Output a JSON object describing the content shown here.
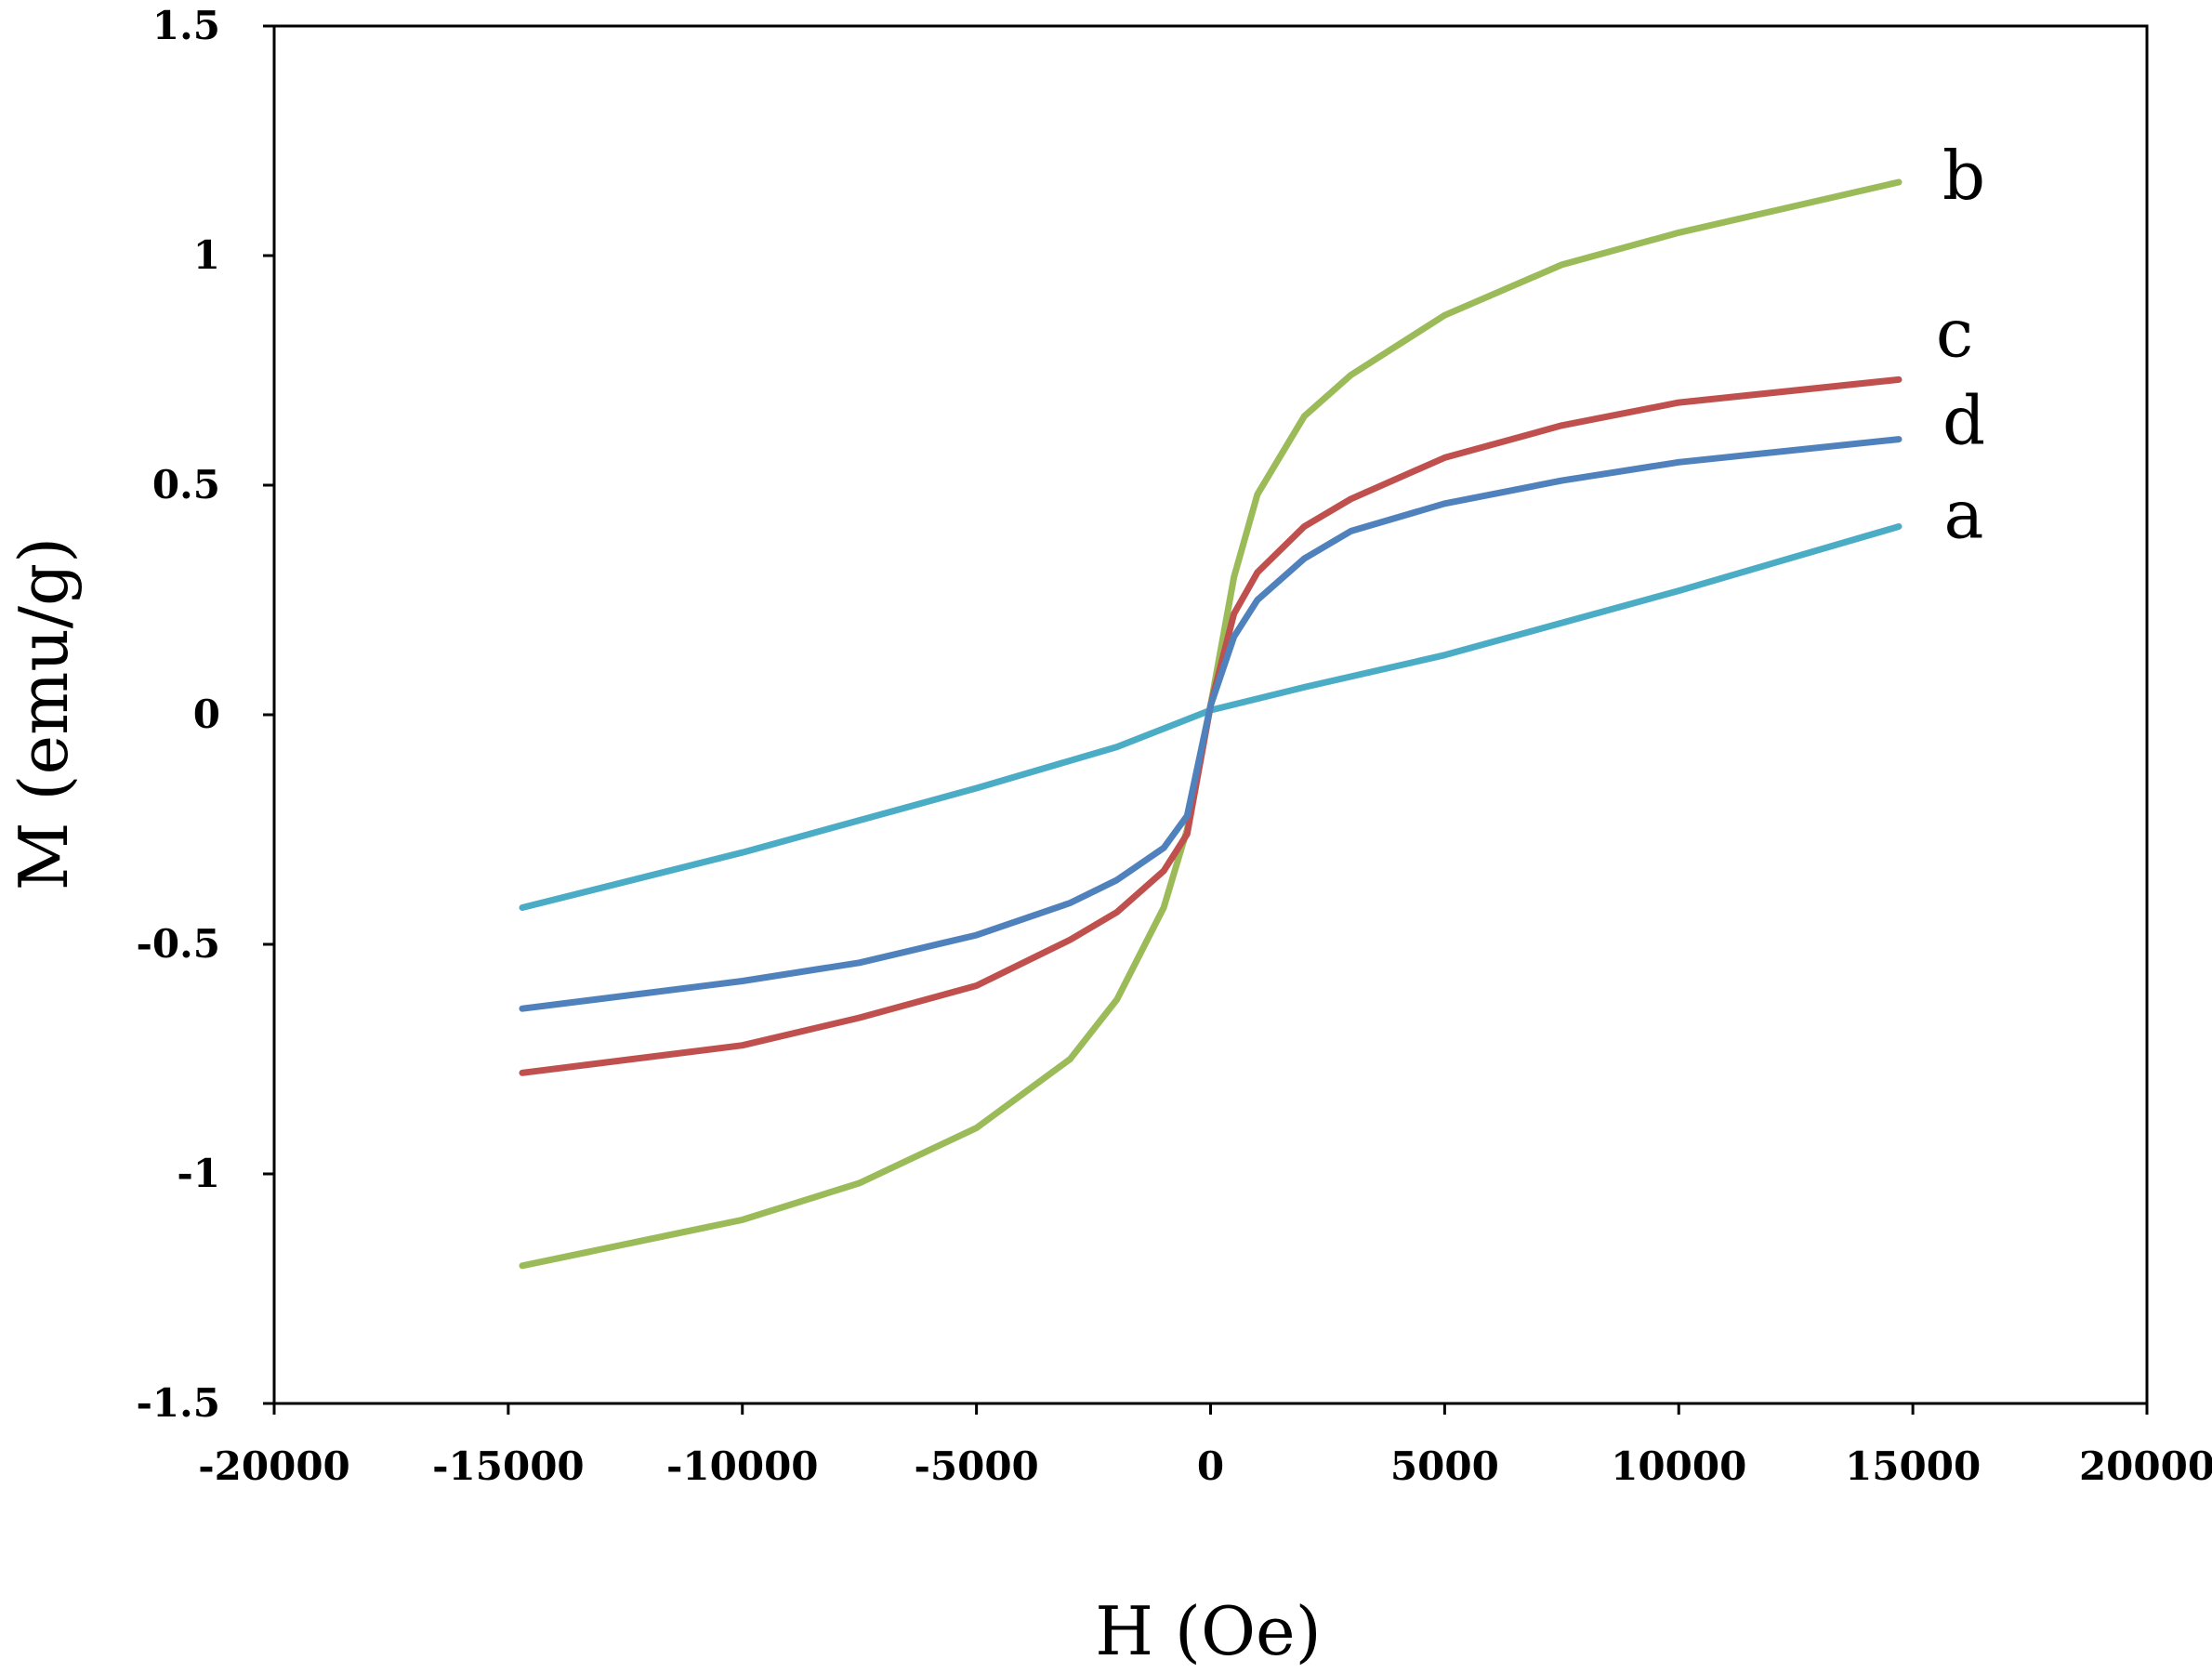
{
  "chart_data": {
    "type": "line",
    "title": "",
    "xlabel": "H (Oe)",
    "ylabel": "M (emu/g)",
    "xlim": [
      -20000,
      20000
    ],
    "ylim": [
      -1.5,
      1.5
    ],
    "x_ticks": [
      -20000,
      -15000,
      -10000,
      -5000,
      0,
      5000,
      10000,
      15000,
      20000
    ],
    "x_tick_labels": [
      "-20000",
      "-15000",
      "-10000",
      "-5000",
      "0",
      "5000",
      "10000",
      "15000",
      "20000"
    ],
    "y_ticks": [
      1.5,
      1,
      0.5,
      0,
      -0.5,
      -1,
      -1.5
    ],
    "y_tick_labels": [
      "1.5",
      "1",
      "0.5",
      "0",
      "-0.5",
      "-1",
      "-1.5"
    ],
    "grid": false,
    "series": [
      {
        "name": "a",
        "color": "#4bacc6",
        "x": [
          -14700,
          -10000,
          -5000,
          -2000,
          0,
          2000,
          5000,
          10000,
          14700
        ],
        "y": [
          -0.42,
          -0.3,
          -0.16,
          -0.07,
          0.01,
          0.06,
          0.13,
          0.27,
          0.41
        ]
      },
      {
        "name": "b",
        "color": "#9bbb59",
        "x": [
          -14700,
          -10000,
          -7500,
          -5000,
          -3000,
          -2000,
          -1000,
          -500,
          0,
          500,
          1000,
          2000,
          3000,
          5000,
          7500,
          10000,
          14700
        ],
        "y": [
          -1.2,
          -1.1,
          -1.02,
          -0.9,
          -0.75,
          -0.62,
          -0.42,
          -0.25,
          0.02,
          0.3,
          0.48,
          0.65,
          0.74,
          0.87,
          0.98,
          1.05,
          1.16
        ]
      },
      {
        "name": "c",
        "color": "#c0504d",
        "x": [
          -14700,
          -10000,
          -7500,
          -5000,
          -3000,
          -2000,
          -1000,
          -500,
          0,
          500,
          1000,
          2000,
          3000,
          5000,
          7500,
          10000,
          14700
        ],
        "y": [
          -0.78,
          -0.72,
          -0.66,
          -0.59,
          -0.49,
          -0.43,
          -0.34,
          -0.26,
          0.02,
          0.22,
          0.31,
          0.41,
          0.47,
          0.56,
          0.63,
          0.68,
          0.73
        ]
      },
      {
        "name": "d",
        "color": "#4f81bd",
        "x": [
          -14700,
          -10000,
          -7500,
          -5000,
          -3000,
          -2000,
          -1000,
          -500,
          0,
          500,
          1000,
          2000,
          3000,
          5000,
          7500,
          10000,
          14700
        ],
        "y": [
          -0.64,
          -0.58,
          -0.54,
          -0.48,
          -0.41,
          -0.36,
          -0.29,
          -0.22,
          0.02,
          0.17,
          0.25,
          0.34,
          0.4,
          0.46,
          0.51,
          0.55,
          0.6
        ]
      }
    ],
    "series_labels": [
      "b",
      "c",
      "d",
      "a"
    ]
  }
}
